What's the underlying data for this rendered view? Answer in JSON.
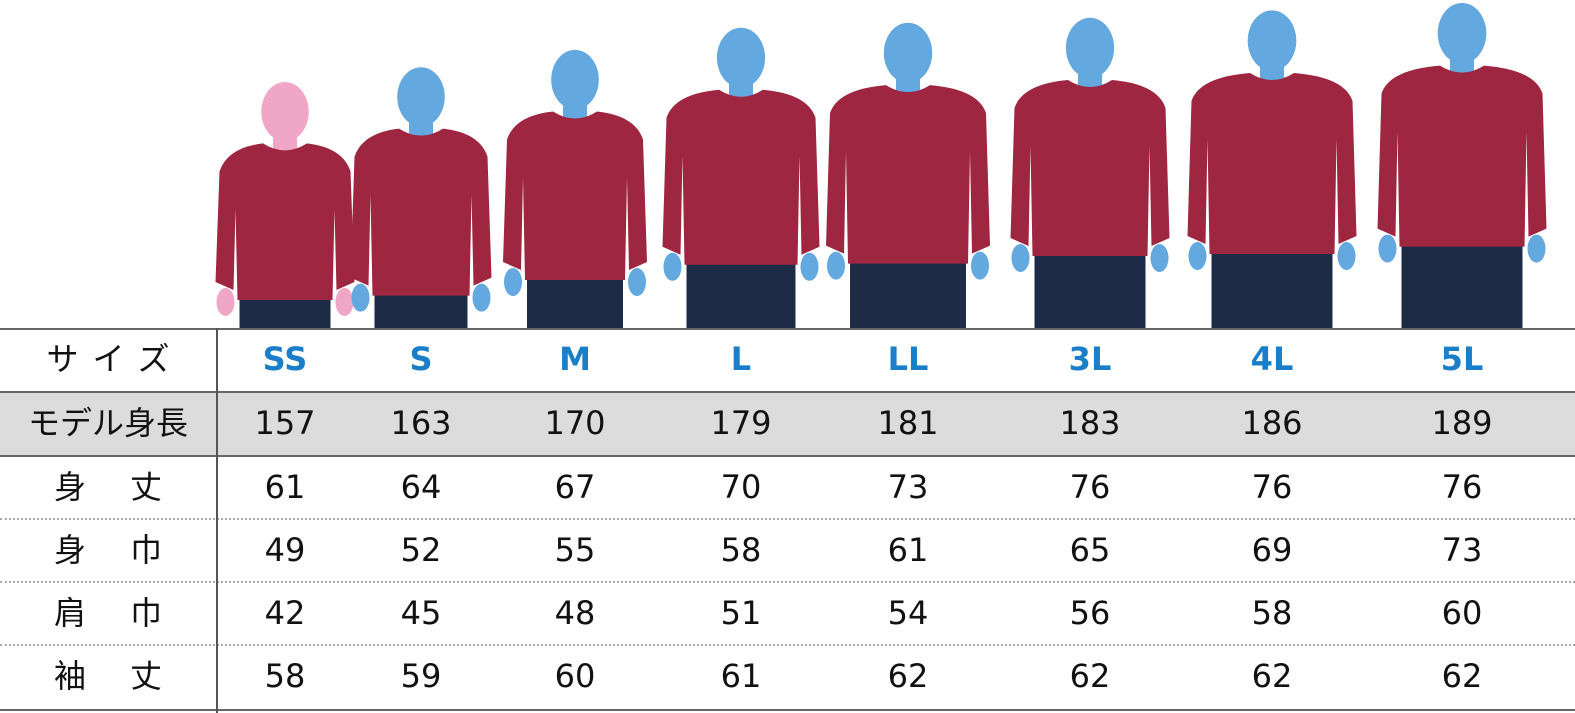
{
  "colors": {
    "header_size_text": "#1a7fc8",
    "model_female": "#f0a6c6",
    "model_male": "#63a8df",
    "sweatshirt": "#9e2641",
    "pants": "#1e2b47",
    "shaded_row": "#dcdcdc"
  },
  "models": [
    {
      "size": "SS",
      "gender": "female",
      "height_cm": 157
    },
    {
      "size": "S",
      "gender": "male",
      "height_cm": 163
    },
    {
      "size": "M",
      "gender": "male",
      "height_cm": 170
    },
    {
      "size": "L",
      "gender": "male",
      "height_cm": 179
    },
    {
      "size": "LL",
      "gender": "male",
      "height_cm": 181
    },
    {
      "size": "3L",
      "gender": "male",
      "height_cm": 183
    },
    {
      "size": "4L",
      "gender": "male",
      "height_cm": 186
    },
    {
      "size": "5L",
      "gender": "male",
      "height_cm": 189
    }
  ],
  "table": {
    "header_label": "サイズ",
    "sizes": [
      "SS",
      "S",
      "M",
      "L",
      "LL",
      "3L",
      "4L",
      "5L"
    ],
    "rows": [
      {
        "label": "モデル身長",
        "values": [
          "157",
          "163",
          "170",
          "179",
          "181",
          "183",
          "186",
          "189"
        ]
      },
      {
        "label": "身丈",
        "values": [
          "61",
          "64",
          "67",
          "70",
          "73",
          "76",
          "76",
          "76"
        ]
      },
      {
        "label": "身巾",
        "values": [
          "49",
          "52",
          "55",
          "58",
          "61",
          "65",
          "69",
          "73"
        ]
      },
      {
        "label": "肩巾",
        "values": [
          "42",
          "45",
          "48",
          "51",
          "54",
          "56",
          "58",
          "60"
        ]
      },
      {
        "label": "袖丈",
        "values": [
          "58",
          "59",
          "60",
          "61",
          "62",
          "62",
          "62",
          "62"
        ]
      }
    ]
  }
}
